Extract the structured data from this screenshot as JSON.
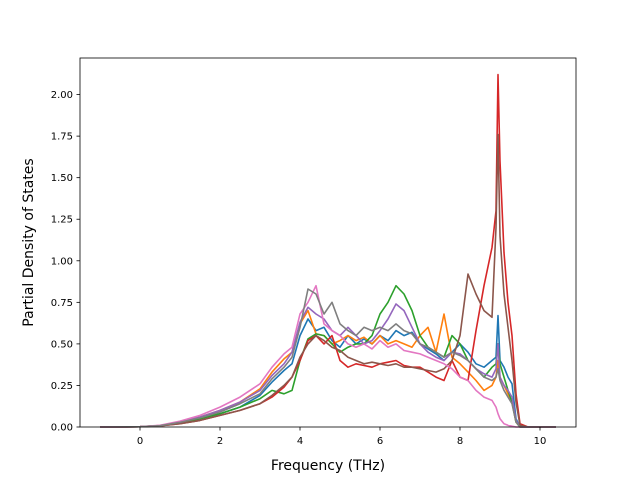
{
  "chart_data": {
    "type": "line",
    "title": "",
    "xlabel": "Frequency (THz)",
    "ylabel": "Partial Density of States",
    "xlim": [
      -1.5,
      10.9
    ],
    "ylim": [
      0,
      2.22
    ],
    "xticks": [
      0,
      2,
      4,
      6,
      8,
      10
    ],
    "xtick_labels": [
      "0",
      "2",
      "4",
      "6",
      "8",
      "10"
    ],
    "yticks": [
      0,
      0.25,
      0.5,
      0.75,
      1.0,
      1.25,
      1.5,
      1.75,
      2.0
    ],
    "ytick_labels": [
      "0.00",
      "0.25",
      "0.50",
      "0.75",
      "1.00",
      "1.25",
      "1.50",
      "1.75",
      "2.00"
    ],
    "grid": false,
    "legend": false,
    "x": [
      -1.0,
      0.0,
      0.5,
      1.0,
      1.5,
      2.0,
      2.5,
      3.0,
      3.3,
      3.6,
      3.8,
      4.0,
      4.2,
      4.4,
      4.6,
      4.8,
      5.0,
      5.2,
      5.4,
      5.6,
      5.8,
      6.0,
      6.2,
      6.4,
      6.6,
      6.8,
      7.0,
      7.2,
      7.4,
      7.6,
      7.8,
      8.0,
      8.2,
      8.4,
      8.6,
      8.8,
      8.9,
      8.95,
      9.0,
      9.1,
      9.2,
      9.3,
      9.4,
      9.5,
      9.7,
      10.0,
      10.4
    ],
    "series": [
      {
        "color": "#1f77b4",
        "values": [
          0,
          0.002,
          0.008,
          0.025,
          0.05,
          0.08,
          0.12,
          0.19,
          0.27,
          0.34,
          0.38,
          0.55,
          0.65,
          0.58,
          0.6,
          0.52,
          0.48,
          0.55,
          0.5,
          0.53,
          0.5,
          0.55,
          0.52,
          0.58,
          0.55,
          0.57,
          0.5,
          0.47,
          0.44,
          0.4,
          0.45,
          0.5,
          0.45,
          0.38,
          0.36,
          0.4,
          0.42,
          0.67,
          0.4,
          0.36,
          0.3,
          0.26,
          0.05,
          0.0,
          0,
          0,
          0
        ]
      },
      {
        "color": "#ff7f0e",
        "values": [
          0,
          0.002,
          0.009,
          0.03,
          0.06,
          0.1,
          0.15,
          0.23,
          0.33,
          0.41,
          0.45,
          0.62,
          0.7,
          0.56,
          0.55,
          0.5,
          0.52,
          0.55,
          0.52,
          0.54,
          0.5,
          0.55,
          0.5,
          0.52,
          0.5,
          0.48,
          0.55,
          0.6,
          0.45,
          0.68,
          0.42,
          0.38,
          0.33,
          0.28,
          0.22,
          0.25,
          0.3,
          0.4,
          0.3,
          0.25,
          0.2,
          0.15,
          0.03,
          0.0,
          0,
          0,
          0
        ]
      },
      {
        "color": "#2ca02c",
        "values": [
          0,
          0.002,
          0.008,
          0.025,
          0.05,
          0.08,
          0.12,
          0.17,
          0.22,
          0.2,
          0.22,
          0.4,
          0.53,
          0.56,
          0.55,
          0.5,
          0.45,
          0.48,
          0.5,
          0.5,
          0.55,
          0.68,
          0.75,
          0.85,
          0.8,
          0.7,
          0.55,
          0.48,
          0.45,
          0.42,
          0.55,
          0.5,
          0.4,
          0.35,
          0.3,
          0.36,
          0.38,
          0.5,
          0.38,
          0.3,
          0.22,
          0.15,
          0.03,
          0.0,
          0,
          0,
          0
        ]
      },
      {
        "color": "#d62728",
        "values": [
          0,
          0.002,
          0.007,
          0.02,
          0.04,
          0.07,
          0.1,
          0.14,
          0.18,
          0.24,
          0.3,
          0.4,
          0.52,
          0.55,
          0.5,
          0.55,
          0.4,
          0.36,
          0.38,
          0.37,
          0.36,
          0.38,
          0.39,
          0.4,
          0.37,
          0.36,
          0.36,
          0.33,
          0.3,
          0.28,
          0.4,
          0.3,
          0.28,
          0.58,
          0.85,
          1.08,
          1.3,
          2.12,
          1.6,
          1.05,
          0.75,
          0.55,
          0.2,
          0.02,
          0,
          0,
          0
        ]
      },
      {
        "color": "#9467bd",
        "values": [
          0,
          0.002,
          0.009,
          0.03,
          0.06,
          0.1,
          0.15,
          0.22,
          0.31,
          0.38,
          0.45,
          0.63,
          0.72,
          0.68,
          0.65,
          0.58,
          0.55,
          0.6,
          0.55,
          0.5,
          0.52,
          0.58,
          0.65,
          0.74,
          0.7,
          0.6,
          0.5,
          0.45,
          0.42,
          0.4,
          0.45,
          0.44,
          0.4,
          0.35,
          0.32,
          0.3,
          0.35,
          0.5,
          0.3,
          0.25,
          0.22,
          0.18,
          0.04,
          0.0,
          0,
          0,
          0
        ]
      },
      {
        "color": "#8c564b",
        "values": [
          0,
          0.002,
          0.007,
          0.02,
          0.04,
          0.07,
          0.1,
          0.14,
          0.19,
          0.25,
          0.3,
          0.42,
          0.5,
          0.55,
          0.52,
          0.48,
          0.46,
          0.42,
          0.4,
          0.38,
          0.39,
          0.38,
          0.37,
          0.38,
          0.36,
          0.36,
          0.35,
          0.34,
          0.33,
          0.35,
          0.4,
          0.55,
          0.92,
          0.8,
          0.7,
          0.66,
          1.2,
          1.76,
          1.15,
          0.8,
          0.6,
          0.4,
          0.15,
          0.01,
          0,
          0,
          0
        ]
      },
      {
        "color": "#e377c2",
        "values": [
          0,
          0.002,
          0.01,
          0.035,
          0.07,
          0.12,
          0.18,
          0.26,
          0.36,
          0.44,
          0.48,
          0.68,
          0.75,
          0.85,
          0.62,
          0.58,
          0.55,
          0.5,
          0.48,
          0.5,
          0.47,
          0.52,
          0.48,
          0.5,
          0.46,
          0.45,
          0.44,
          0.42,
          0.4,
          0.38,
          0.35,
          0.3,
          0.28,
          0.22,
          0.18,
          0.16,
          0.12,
          0.08,
          0.05,
          0.02,
          0.01,
          0.005,
          0.0,
          0,
          0,
          0,
          0
        ]
      },
      {
        "color": "#7f7f7f",
        "values": [
          0,
          0.002,
          0.008,
          0.028,
          0.055,
          0.09,
          0.14,
          0.2,
          0.29,
          0.36,
          0.42,
          0.6,
          0.83,
          0.8,
          0.68,
          0.75,
          0.62,
          0.58,
          0.55,
          0.6,
          0.58,
          0.6,
          0.58,
          0.62,
          0.58,
          0.56,
          0.5,
          0.48,
          0.45,
          0.42,
          0.45,
          0.43,
          0.4,
          0.35,
          0.3,
          0.28,
          0.3,
          0.35,
          0.28,
          0.22,
          0.18,
          0.14,
          0.03,
          0.0,
          0,
          0,
          0
        ]
      }
    ]
  }
}
